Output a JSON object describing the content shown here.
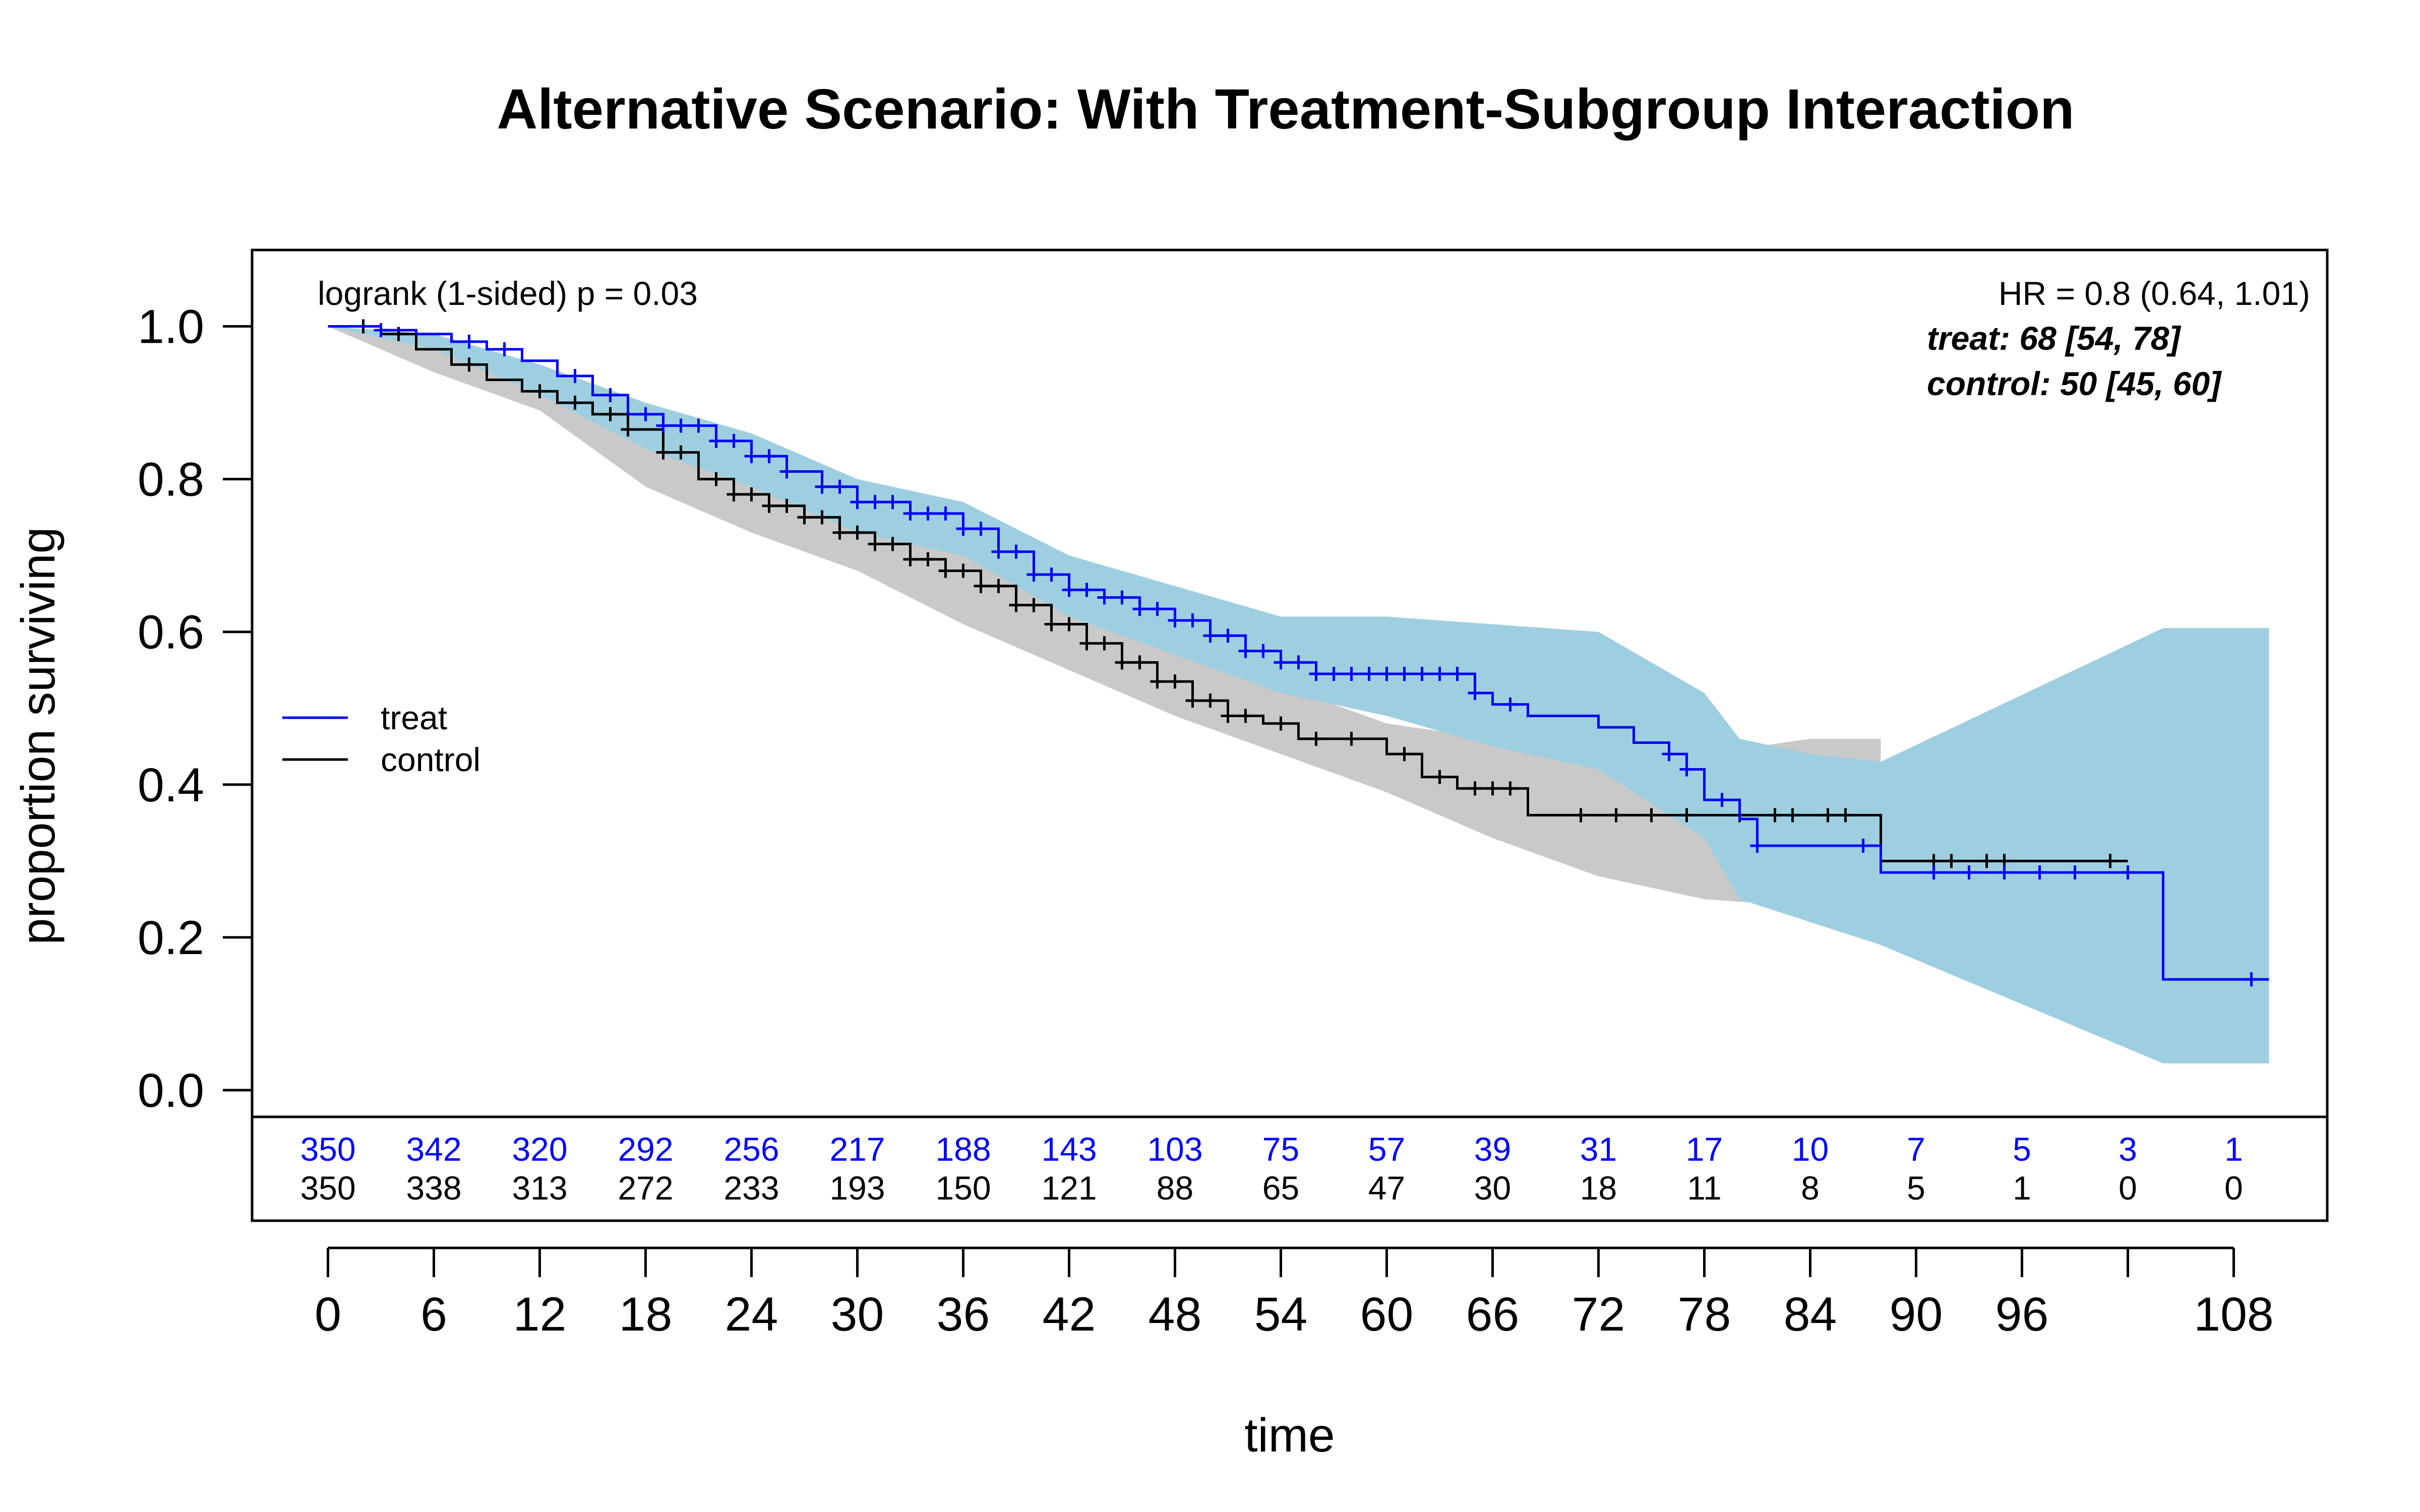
{
  "chart_data": {
    "type": "line",
    "title": "Alternative Scenario: With Treatment-Subgroup Interaction",
    "xlabel": "time",
    "ylabel": "proportion surviving",
    "xlim": [
      -4.3,
      113.3
    ],
    "ylim": [
      -0.035,
      1.1
    ],
    "x_ticks": [
      0,
      6,
      12,
      18,
      24,
      30,
      36,
      42,
      48,
      54,
      60,
      66,
      72,
      78,
      84,
      90,
      96,
      102,
      108
    ],
    "x_tick_labels": [
      "0",
      "6",
      "12",
      "18",
      "24",
      "30",
      "36",
      "42",
      "48",
      "54",
      "60",
      "66",
      "72",
      "78",
      "84",
      "90",
      "96",
      "",
      "108"
    ],
    "y_ticks": [
      0.0,
      0.2,
      0.4,
      0.6,
      0.8,
      1.0
    ],
    "y_tick_labels": [
      "0.0",
      "0.2",
      "0.4",
      "0.6",
      "0.8",
      "1.0"
    ],
    "grid": false,
    "legend": {
      "position": "left",
      "entries": [
        {
          "label": "treat",
          "color": "#0000ff"
        },
        {
          "label": "control",
          "color": "#000000"
        }
      ]
    },
    "annotations": {
      "pvalue": "logrank (1-sided) p = 0.03",
      "hr": "HR = 0.8 (0.64, 1.01)",
      "treat_median": "treat: 68 [54, 78]",
      "control_median": "control: 50 [45, 60]"
    },
    "series": [
      {
        "name": "treat",
        "color": "#0000ff",
        "band_color": "#9ecfe0",
        "steps": [
          [
            0,
            1.0
          ],
          [
            3,
            0.995
          ],
          [
            5,
            0.99
          ],
          [
            7,
            0.98
          ],
          [
            9,
            0.97
          ],
          [
            11,
            0.955
          ],
          [
            13,
            0.935
          ],
          [
            15,
            0.91
          ],
          [
            17,
            0.885
          ],
          [
            19,
            0.87
          ],
          [
            22,
            0.85
          ],
          [
            24,
            0.83
          ],
          [
            26,
            0.81
          ],
          [
            28,
            0.79
          ],
          [
            30,
            0.77
          ],
          [
            33,
            0.755
          ],
          [
            36,
            0.735
          ],
          [
            38,
            0.705
          ],
          [
            40,
            0.675
          ],
          [
            42,
            0.655
          ],
          [
            44,
            0.645
          ],
          [
            46,
            0.63
          ],
          [
            48,
            0.615
          ],
          [
            50,
            0.595
          ],
          [
            52,
            0.575
          ],
          [
            54,
            0.56
          ],
          [
            56,
            0.545
          ],
          [
            65,
            0.52
          ],
          [
            66,
            0.505
          ],
          [
            68,
            0.49
          ],
          [
            72,
            0.475
          ],
          [
            74,
            0.455
          ],
          [
            76,
            0.44
          ],
          [
            77,
            0.42
          ],
          [
            78,
            0.38
          ],
          [
            80,
            0.355
          ],
          [
            81,
            0.32
          ],
          [
            88,
            0.285
          ],
          [
            104,
            0.145
          ],
          [
            110,
            0.145
          ]
        ],
        "band": [
          [
            0,
            1.0,
            1.0
          ],
          [
            6,
            0.99,
            0.97
          ],
          [
            12,
            0.95,
            0.91
          ],
          [
            18,
            0.9,
            0.84
          ],
          [
            24,
            0.86,
            0.79
          ],
          [
            30,
            0.8,
            0.73
          ],
          [
            36,
            0.77,
            0.7
          ],
          [
            42,
            0.7,
            0.62
          ],
          [
            48,
            0.66,
            0.57
          ],
          [
            54,
            0.62,
            0.52
          ],
          [
            60,
            0.62,
            0.49
          ],
          [
            66,
            0.61,
            0.45
          ],
          [
            72,
            0.6,
            0.42
          ],
          [
            78,
            0.52,
            0.33
          ],
          [
            80,
            0.46,
            0.25
          ],
          [
            84,
            0.44,
            0.22
          ],
          [
            88,
            0.43,
            0.19
          ],
          [
            104,
            0.605,
            0.035
          ],
          [
            110,
            0.605,
            0.035
          ]
        ],
        "censor_x": [
          3,
          8,
          10,
          14,
          16,
          18,
          19,
          20,
          21,
          22,
          23,
          24,
          25,
          26,
          28,
          29,
          30,
          31,
          32,
          33,
          34,
          35,
          36,
          37,
          38,
          39,
          40,
          41,
          42,
          43,
          44,
          45,
          46,
          47,
          48,
          49,
          50,
          51,
          52,
          53,
          54,
          55,
          56,
          57,
          58,
          59,
          60,
          61,
          62,
          63,
          64,
          65,
          67,
          76,
          77,
          79,
          81,
          87,
          91,
          93,
          95,
          97,
          99,
          102,
          109
        ],
        "at_risk": [
          350,
          342,
          320,
          292,
          256,
          217,
          188,
          143,
          103,
          75,
          57,
          39,
          31,
          17,
          10,
          7,
          5,
          3,
          1
        ]
      },
      {
        "name": "control",
        "color": "#000000",
        "band_color": "#c9c9c9",
        "steps": [
          [
            0,
            1.0
          ],
          [
            3,
            0.99
          ],
          [
            5,
            0.97
          ],
          [
            7,
            0.95
          ],
          [
            9,
            0.93
          ],
          [
            11,
            0.915
          ],
          [
            13,
            0.9
          ],
          [
            15,
            0.885
          ],
          [
            17,
            0.865
          ],
          [
            19,
            0.835
          ],
          [
            21,
            0.8
          ],
          [
            23,
            0.78
          ],
          [
            25,
            0.765
          ],
          [
            27,
            0.75
          ],
          [
            29,
            0.73
          ],
          [
            31,
            0.715
          ],
          [
            33,
            0.695
          ],
          [
            35,
            0.68
          ],
          [
            37,
            0.66
          ],
          [
            39,
            0.635
          ],
          [
            41,
            0.61
          ],
          [
            43,
            0.585
          ],
          [
            45,
            0.56
          ],
          [
            47,
            0.535
          ],
          [
            49,
            0.51
          ],
          [
            51,
            0.49
          ],
          [
            53,
            0.48
          ],
          [
            55,
            0.46
          ],
          [
            60,
            0.44
          ],
          [
            62,
            0.41
          ],
          [
            64,
            0.395
          ],
          [
            68,
            0.36
          ],
          [
            88,
            0.3
          ],
          [
            102,
            0.3
          ]
        ],
        "band": [
          [
            0,
            1.0,
            1.0
          ],
          [
            6,
            0.97,
            0.94
          ],
          [
            12,
            0.93,
            0.89
          ],
          [
            18,
            0.86,
            0.79
          ],
          [
            24,
            0.8,
            0.73
          ],
          [
            30,
            0.76,
            0.68
          ],
          [
            36,
            0.7,
            0.61
          ],
          [
            42,
            0.66,
            0.55
          ],
          [
            48,
            0.6,
            0.49
          ],
          [
            54,
            0.53,
            0.44
          ],
          [
            60,
            0.48,
            0.39
          ],
          [
            66,
            0.46,
            0.33
          ],
          [
            72,
            0.45,
            0.28
          ],
          [
            78,
            0.44,
            0.25
          ],
          [
            84,
            0.46,
            0.24
          ],
          [
            88,
            0.46,
            0.24
          ]
        ],
        "censor_x": [
          2,
          4,
          8,
          12,
          14,
          16,
          17,
          19,
          20,
          22,
          23,
          24,
          25,
          26,
          27,
          28,
          29,
          30,
          31,
          32,
          33,
          34,
          35,
          36,
          37,
          38,
          39,
          40,
          41,
          42,
          43,
          44,
          45,
          46,
          47,
          48,
          49,
          50,
          51,
          52,
          54,
          56,
          58,
          61,
          63,
          65,
          66,
          67,
          71,
          73,
          75,
          77,
          80,
          82,
          83,
          85,
          86,
          91,
          92,
          94,
          95,
          101
        ],
        "at_risk": [
          350,
          338,
          313,
          272,
          233,
          193,
          150,
          121,
          88,
          65,
          47,
          30,
          18,
          11,
          8,
          5,
          1,
          0,
          0
        ]
      }
    ]
  }
}
